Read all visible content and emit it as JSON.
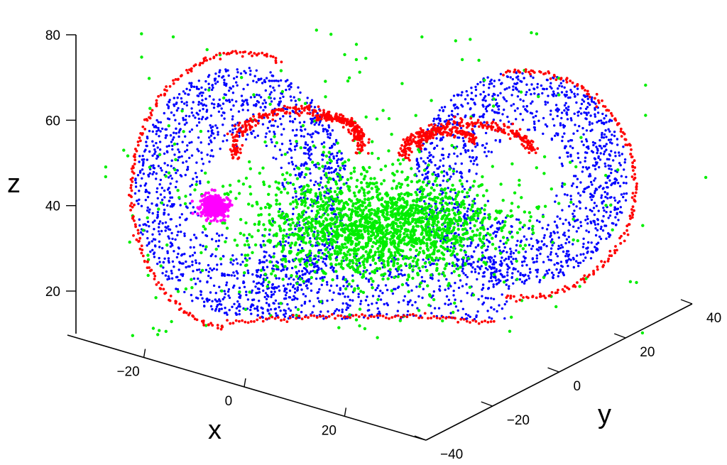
{
  "chart_data": {
    "type": "scatter",
    "dimensions": 3,
    "title": "",
    "xlabel": "x",
    "ylabel": "y",
    "zlabel": "z",
    "xlim": [
      -30,
      35
    ],
    "ylim": [
      -40,
      40
    ],
    "zlim": [
      10,
      80
    ],
    "x_ticks": [
      {
        "value": -20,
        "label": "−20"
      },
      {
        "value": 0,
        "label": "0"
      },
      {
        "value": 20,
        "label": "20"
      }
    ],
    "y_ticks": [
      {
        "value": -40,
        "label": "−40"
      },
      {
        "value": -20,
        "label": "−20"
      },
      {
        "value": 0,
        "label": "0"
      },
      {
        "value": 20,
        "label": "20"
      },
      {
        "value": 40,
        "label": "40"
      }
    ],
    "z_ticks": [
      {
        "value": 20,
        "label": "20"
      },
      {
        "value": 40,
        "label": "40"
      },
      {
        "value": 60,
        "label": "60"
      },
      {
        "value": 80,
        "label": "80"
      }
    ],
    "grid": false,
    "legend": false,
    "series": [
      {
        "color": "#0000ff",
        "kind": "diffuse cloud of points filling both lobes of the attractor"
      },
      {
        "color": "#00ee00",
        "kind": "dense cluster in the lower center, sparse scatter elsewhere"
      },
      {
        "color": "#ff0000",
        "kind": "thin spiral bands tracing the outer edges and inner curls of both lobes"
      },
      {
        "color": "#ff00ff",
        "kind": "small tight cluster near the left lobe"
      }
    ]
  }
}
